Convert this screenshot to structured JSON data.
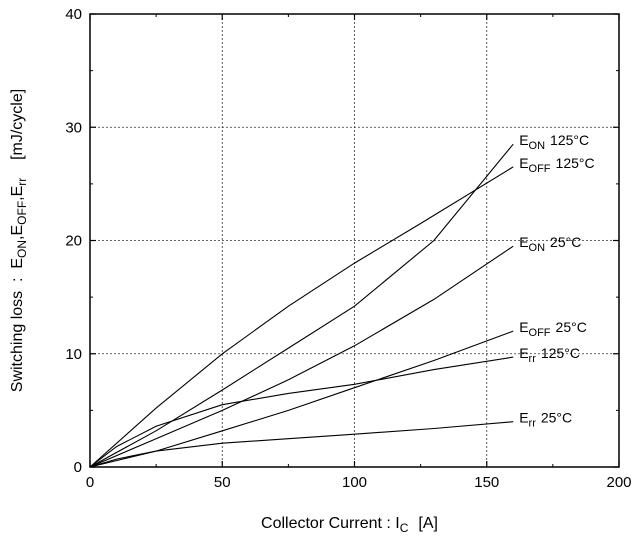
{
  "chart_data": {
    "type": "line",
    "xlabel": {
      "main": "Collector Current : I",
      "sub": "C",
      "unit": "[A]"
    },
    "ylabel": {
      "parts": [
        "Switching loss  :  E",
        "ON",
        ",E",
        "OFF",
        ",E",
        "rr",
        "    [mJ/cycle]"
      ]
    },
    "xlim": [
      0,
      200
    ],
    "ylim": [
      0,
      40
    ],
    "x_ticks": [
      0,
      50,
      100,
      150,
      200
    ],
    "y_ticks": [
      0,
      10,
      20,
      30,
      40
    ],
    "grid": {
      "x": [
        50,
        100,
        150
      ],
      "y": [
        10,
        20,
        30
      ],
      "style": "dashed"
    },
    "series": [
      {
        "name": "E_ON 125°C",
        "label": {
          "base": "E",
          "sub": "ON",
          "suffix": "125°C"
        },
        "x": [
          0,
          25,
          50,
          75,
          100,
          130,
          160
        ],
        "y": [
          0,
          3.2,
          6.8,
          10.5,
          14.2,
          20,
          28.5
        ]
      },
      {
        "name": "E_OFF 125°C",
        "label": {
          "base": "E",
          "sub": "OFF",
          "suffix": "125°C"
        },
        "x": [
          0,
          25,
          50,
          75,
          100,
          125,
          160
        ],
        "y": [
          0,
          5.2,
          10,
          14.2,
          18,
          21.5,
          26.5
        ]
      },
      {
        "name": "E_ON 25°C",
        "label": {
          "base": "E",
          "sub": "ON",
          "suffix": "25°C"
        },
        "x": [
          0,
          25,
          50,
          75,
          100,
          130,
          160
        ],
        "y": [
          0,
          2.5,
          5.0,
          7.7,
          10.7,
          14.8,
          19.5
        ]
      },
      {
        "name": "E_OFF 25°C",
        "label": {
          "base": "E",
          "sub": "OFF",
          "suffix": "25°C"
        },
        "x": [
          0,
          25,
          50,
          75,
          100,
          130,
          160
        ],
        "y": [
          0,
          1.4,
          3.2,
          5.0,
          7.0,
          9.4,
          12.0
        ]
      },
      {
        "name": "E_rr 125°C",
        "label": {
          "base": "E",
          "sub": "rr",
          "suffix": "125°C"
        },
        "x": [
          0,
          10,
          25,
          50,
          75,
          100,
          130,
          160
        ],
        "y": [
          0,
          1.8,
          3.6,
          5.5,
          6.5,
          7.3,
          8.6,
          9.7
        ]
      },
      {
        "name": "E_rr 25°C",
        "label": {
          "base": "E",
          "sub": "rr",
          "suffix": "25°C"
        },
        "x": [
          0,
          10,
          25,
          50,
          75,
          100,
          130,
          160
        ],
        "y": [
          0,
          0.7,
          1.4,
          2.1,
          2.5,
          2.9,
          3.4,
          4.0
        ]
      }
    ]
  }
}
